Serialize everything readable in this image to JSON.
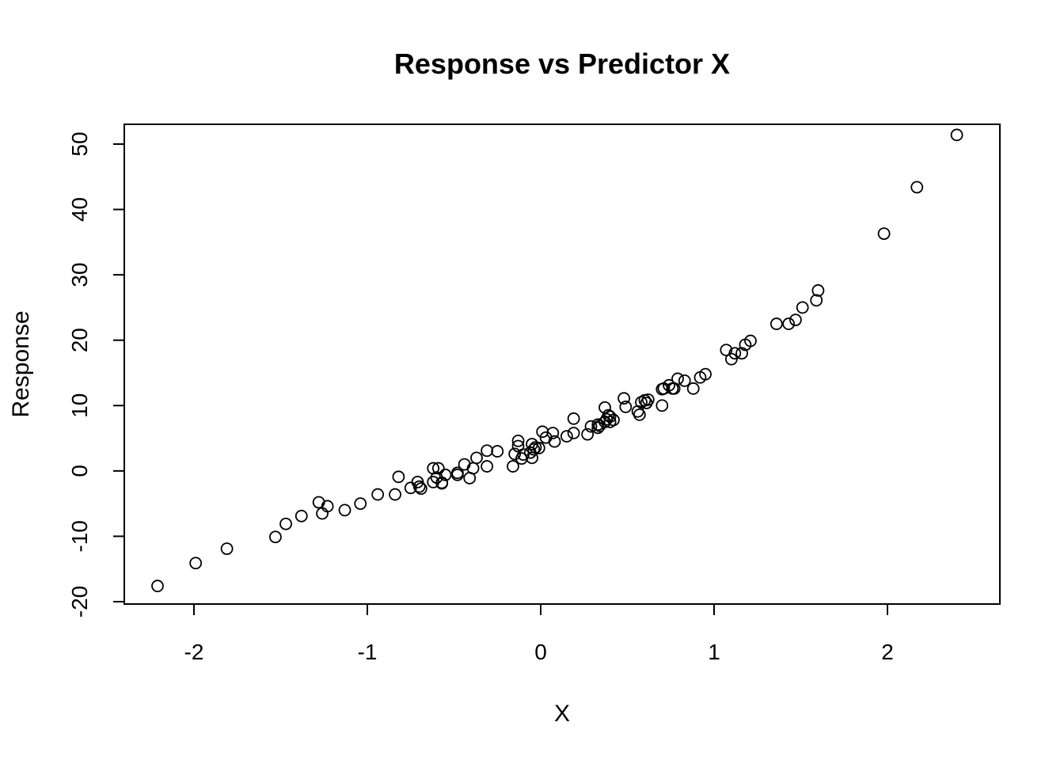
{
  "chart_data": {
    "type": "scatter",
    "title": "Response vs Predictor X",
    "xlabel": "X",
    "ylabel": "Response",
    "xlim": [
      -2.4,
      2.6
    ],
    "ylim": [
      -20,
      52
    ],
    "x_ticks": [
      -2,
      -1,
      0,
      1,
      2
    ],
    "y_ticks": [
      -20,
      -10,
      0,
      10,
      20,
      30,
      40,
      50
    ],
    "x_tick_labels": [
      "-2",
      "-1",
      "0",
      "1",
      "2"
    ],
    "y_tick_labels": [
      "-20",
      "-10",
      "0",
      "10",
      "20",
      "30",
      "40",
      "50"
    ],
    "grid": false,
    "marker": "open-circle",
    "points": [
      [
        -2.21,
        -17.6
      ],
      [
        -1.99,
        -14.1
      ],
      [
        -1.81,
        -11.9
      ],
      [
        -1.53,
        -10.1
      ],
      [
        -1.47,
        -8.1
      ],
      [
        -1.38,
        -6.9
      ],
      [
        -1.28,
        -4.8
      ],
      [
        -1.26,
        -6.5
      ],
      [
        -1.23,
        -5.4
      ],
      [
        -1.13,
        -6.0
      ],
      [
        -1.04,
        -5.0
      ],
      [
        -0.94,
        -3.6
      ],
      [
        -0.84,
        -3.6
      ],
      [
        -0.82,
        -0.9
      ],
      [
        -0.75,
        -2.6
      ],
      [
        -0.71,
        -1.7
      ],
      [
        -0.7,
        -2.4
      ],
      [
        -0.69,
        -2.7
      ],
      [
        -0.62,
        -1.7
      ],
      [
        -0.62,
        0.4
      ],
      [
        -0.6,
        -1.0
      ],
      [
        -0.59,
        0.4
      ],
      [
        -0.57,
        -1.8
      ],
      [
        -0.57,
        -1.9
      ],
      [
        -0.55,
        -0.6
      ],
      [
        -0.48,
        -0.6
      ],
      [
        -0.48,
        -0.3
      ],
      [
        -0.44,
        1.0
      ],
      [
        -0.41,
        -1.1
      ],
      [
        -0.39,
        0.4
      ],
      [
        -0.37,
        2.0
      ],
      [
        -0.31,
        3.1
      ],
      [
        -0.31,
        0.7
      ],
      [
        -0.25,
        3.0
      ],
      [
        -0.16,
        0.7
      ],
      [
        -0.15,
        2.6
      ],
      [
        -0.13,
        4.6
      ],
      [
        -0.13,
        3.8
      ],
      [
        -0.11,
        1.9
      ],
      [
        -0.1,
        2.5
      ],
      [
        -0.06,
        2.8
      ],
      [
        -0.05,
        4.1
      ],
      [
        -0.05,
        2.0
      ],
      [
        -0.04,
        3.3
      ],
      [
        -0.03,
        3.6
      ],
      [
        -0.01,
        3.5
      ],
      [
        0.01,
        6.0
      ],
      [
        0.03,
        5.1
      ],
      [
        0.07,
        5.8
      ],
      [
        0.08,
        4.5
      ],
      [
        0.15,
        5.3
      ],
      [
        0.19,
        5.8
      ],
      [
        0.19,
        8.0
      ],
      [
        0.27,
        5.6
      ],
      [
        0.29,
        6.8
      ],
      [
        0.33,
        6.6
      ],
      [
        0.33,
        7.1
      ],
      [
        0.34,
        6.9
      ],
      [
        0.37,
        9.7
      ],
      [
        0.37,
        7.5
      ],
      [
        0.38,
        7.9
      ],
      [
        0.39,
        8.5
      ],
      [
        0.4,
        7.5
      ],
      [
        0.4,
        8.3
      ],
      [
        0.42,
        7.8
      ],
      [
        0.48,
        11.1
      ],
      [
        0.49,
        9.8
      ],
      [
        0.56,
        9.1
      ],
      [
        0.57,
        8.6
      ],
      [
        0.58,
        10.5
      ],
      [
        0.6,
        10.8
      ],
      [
        0.61,
        10.4
      ],
      [
        0.62,
        10.9
      ],
      [
        0.7,
        12.5
      ],
      [
        0.7,
        10.0
      ],
      [
        0.71,
        12.6
      ],
      [
        0.74,
        13.1
      ],
      [
        0.76,
        12.6
      ],
      [
        0.77,
        12.6
      ],
      [
        0.79,
        14.1
      ],
      [
        0.83,
        13.8
      ],
      [
        0.88,
        12.6
      ],
      [
        0.92,
        14.3
      ],
      [
        0.95,
        14.8
      ],
      [
        1.07,
        18.5
      ],
      [
        1.1,
        17.1
      ],
      [
        1.12,
        18.0
      ],
      [
        1.16,
        18.0
      ],
      [
        1.18,
        19.3
      ],
      [
        1.21,
        19.9
      ],
      [
        1.36,
        22.5
      ],
      [
        1.43,
        22.5
      ],
      [
        1.47,
        23.1
      ],
      [
        1.51,
        25.0
      ],
      [
        1.59,
        26.1
      ],
      [
        1.6,
        27.6
      ],
      [
        1.98,
        36.3
      ],
      [
        2.17,
        43.4
      ],
      [
        2.4,
        51.4
      ]
    ]
  }
}
